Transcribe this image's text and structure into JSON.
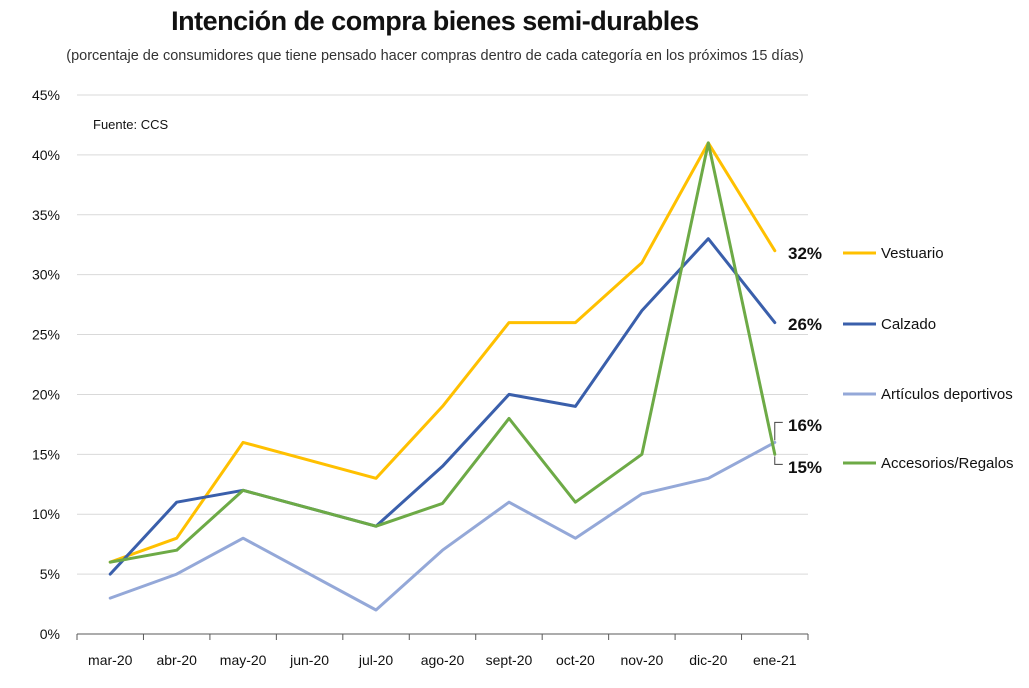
{
  "chart_data": {
    "type": "line",
    "title": "Intención de compra bienes semi-durables",
    "subtitle": "(porcentaje de consumidores que tiene pensado hacer compras dentro de cada categoría en los próximos 15 días)",
    "source": "Fuente: CCS",
    "xlabel": "",
    "ylabel": "",
    "ylim": [
      0,
      45
    ],
    "yticks": [
      0,
      5,
      10,
      15,
      20,
      25,
      30,
      35,
      40,
      45
    ],
    "ytick_labels": [
      "0%",
      "5%",
      "10%",
      "15%",
      "20%",
      "25%",
      "30%",
      "35%",
      "40%",
      "45%"
    ],
    "grid": true,
    "legend_position": "right",
    "categories": [
      "mar-20",
      "abr-20",
      "may-20",
      "jun-20",
      "jul-20",
      "ago-20",
      "sept-20",
      "oct-20",
      "nov-20",
      "dic-20",
      "ene-21"
    ],
    "series": [
      {
        "name": "Vestuario",
        "color": "#FFC000",
        "x": [
          "mar-20",
          "abr-20",
          "may-20",
          "jul-20",
          "ago-20",
          "sept-20",
          "oct-20",
          "nov-20",
          "dic-20",
          "ene-21"
        ],
        "values": [
          6,
          8,
          16,
          13,
          19,
          26,
          26,
          31,
          41,
          32
        ],
        "end_label": "32%"
      },
      {
        "name": "Calzado",
        "color": "#3A5FAB",
        "x": [
          "mar-20",
          "abr-20",
          "may-20",
          "jul-20",
          "ago-20",
          "sept-20",
          "oct-20",
          "nov-20",
          "dic-20",
          "ene-21"
        ],
        "values": [
          5,
          11,
          12,
          9,
          14,
          20,
          19,
          27,
          33,
          26
        ],
        "end_label": "26%"
      },
      {
        "name": "Artículos deportivos",
        "color": "#94A8D8",
        "x": [
          "mar-20",
          "abr-20",
          "may-20",
          "jul-20",
          "ago-20",
          "sept-20",
          "oct-20",
          "nov-20",
          "dic-20",
          "ene-21"
        ],
        "values": [
          3,
          5,
          8,
          2,
          7,
          11,
          8,
          11.7,
          13,
          16
        ],
        "end_label": "16%"
      },
      {
        "name": "Accesorios/Regalos",
        "color": "#6DAA46",
        "x": [
          "mar-20",
          "abr-20",
          "may-20",
          "jul-20",
          "ago-20",
          "sept-20",
          "oct-20",
          "nov-20",
          "dic-20",
          "ene-21"
        ],
        "values": [
          6,
          7,
          12,
          9,
          10.9,
          18,
          11,
          15,
          41,
          15
        ],
        "end_label": "15%"
      }
    ]
  }
}
